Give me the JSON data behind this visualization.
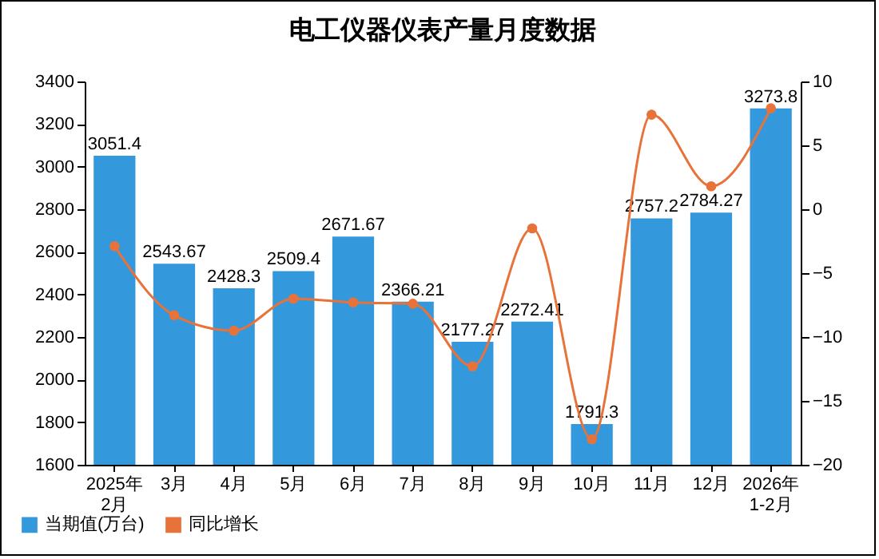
{
  "chart_data": {
    "type": "bar",
    "title": "电工仪器仪表产量月度数据",
    "categories": [
      "2025年\n2月",
      "3月",
      "4月",
      "5月",
      "6月",
      "7月",
      "8月",
      "9月",
      "10月",
      "11月",
      "12月",
      "2026年\n1-2月"
    ],
    "series": [
      {
        "name": "当期值(万台)",
        "color": "#3498dc",
        "values": [
          3051.4,
          2543.67,
          2428.3,
          2509.4,
          2671.67,
          2366.21,
          2177.27,
          2272.41,
          1791.3,
          2757.2,
          2784.27,
          3273.8
        ],
        "value_labels": [
          "3051.4",
          "2543.67",
          "2428.3",
          "2509.4",
          "2671.67",
          "2366.21",
          "2177.27",
          "2272.41",
          "1791.3",
          "2757.2",
          "2784.27",
          "3273.8"
        ]
      },
      {
        "name": "同比增长",
        "type": "line",
        "axis": "y2",
        "color": "#e8733a",
        "marker": "circle",
        "values": [
          -2.9,
          -8.3,
          -9.5,
          -7.0,
          -7.3,
          -7.4,
          -12.3,
          -1.5,
          -18.0,
          7.4,
          1.8,
          7.9
        ]
      }
    ],
    "ylim": [
      1600,
      3400
    ],
    "yticks": [
      1600,
      1800,
      2000,
      2200,
      2400,
      2600,
      2800,
      3000,
      3200,
      3400
    ],
    "y2lim": [
      -20,
      10
    ],
    "y2ticks": [
      -20,
      -15,
      -10,
      -5,
      0,
      5,
      10
    ],
    "grid": false,
    "legend": "bottom left"
  }
}
